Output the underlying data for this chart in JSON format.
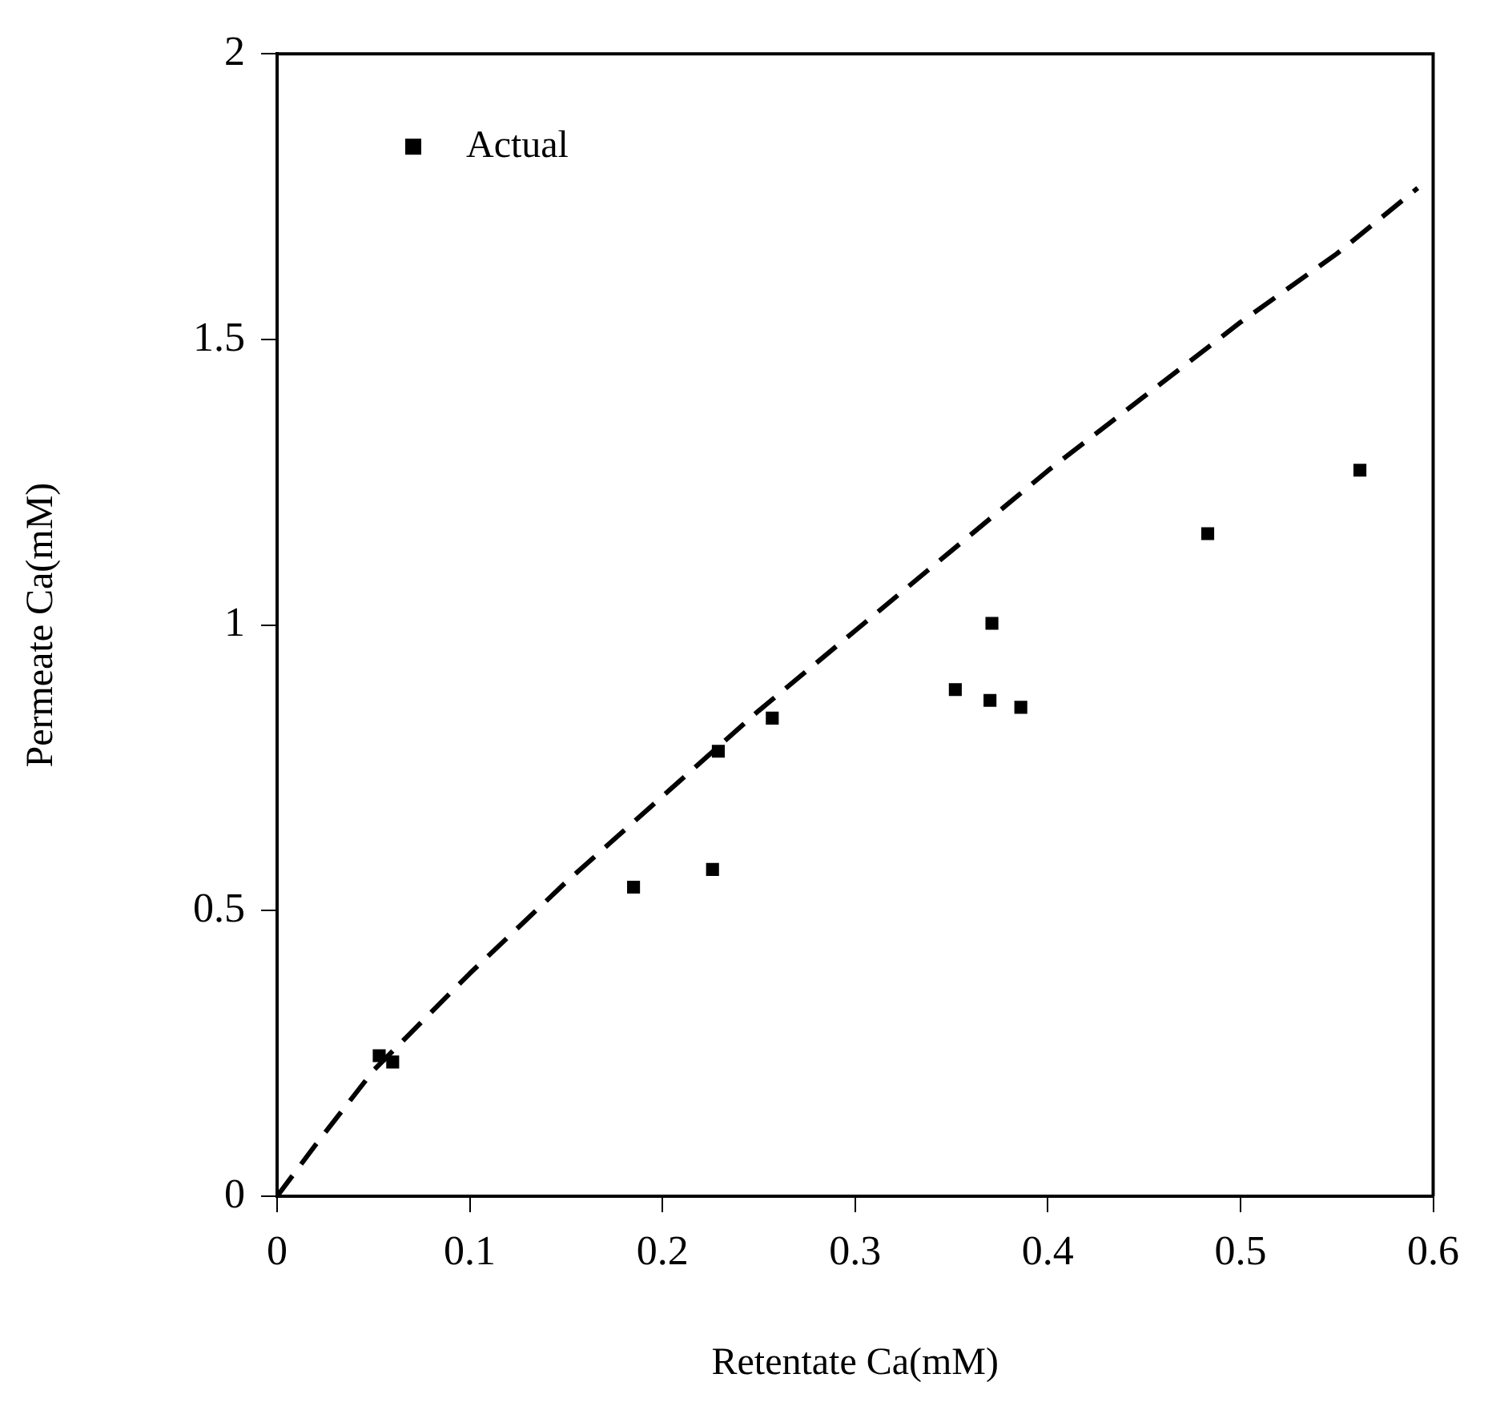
{
  "chart_data": {
    "type": "scatter",
    "xlabel": "Retentate Ca(mM)",
    "ylabel": "Permeate Ca(mM)",
    "xlim": [
      0,
      0.6
    ],
    "xticks": [
      0,
      0.1,
      0.2,
      0.3,
      0.4,
      0.5,
      0.6
    ],
    "ylim": [
      0,
      2
    ],
    "yticks": [
      0,
      0.5,
      1,
      1.5,
      2
    ],
    "grid": false,
    "legend": "top left",
    "series": [
      {
        "name": "Actual",
        "marker": "square",
        "color": "#000000",
        "x": [
          0.053,
          0.06,
          0.185,
          0.226,
          0.229,
          0.257,
          0.352,
          0.37,
          0.386,
          0.371,
          0.483,
          0.562
        ],
        "values": [
          0.246,
          0.235,
          0.541,
          0.572,
          0.779,
          0.837,
          0.887,
          0.868,
          0.856,
          1.003,
          1.16,
          1.271
        ]
      },
      {
        "type": "line",
        "marker": "none",
        "line_style": "dashed",
        "color": "#000000",
        "x": [
          0,
          0.02,
          0.05,
          0.1,
          0.15,
          0.2,
          0.25,
          0.3,
          0.35,
          0.4,
          0.45,
          0.5,
          0.55,
          0.592
        ],
        "values": [
          0,
          0.09,
          0.22,
          0.39,
          0.55,
          0.7,
          0.85,
          0.99,
          1.13,
          1.27,
          1.4,
          1.53,
          1.65,
          1.765
        ]
      }
    ]
  }
}
